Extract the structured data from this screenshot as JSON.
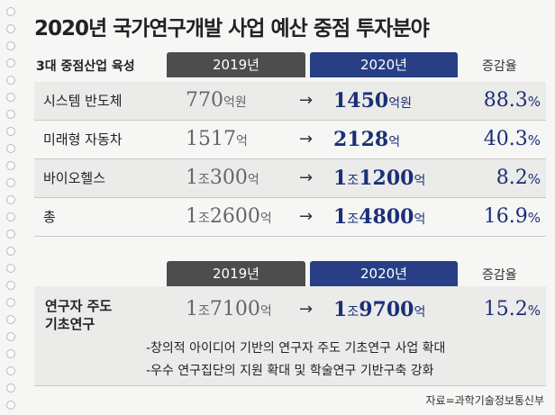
{
  "title": "2020년 국가연구개발 사업 예산 중점 투자분야",
  "section1": {
    "label": "3대 중점산업 육성",
    "col_2019": "2019년",
    "col_2020": "2020년",
    "col_rate": "증감율",
    "rows": [
      {
        "label": "시스템 반도체",
        "v2019_num": "770",
        "v2019_unit": "억원",
        "arrow": "→",
        "v2020_num": "1450",
        "v2020_unit": "억원",
        "rate_num": "88.3",
        "rate_unit": "%"
      },
      {
        "label": "미래형 자동차",
        "v2019_num": "1517",
        "v2019_unit": "억",
        "arrow": "→",
        "v2020_num": "2128",
        "v2020_unit": "억",
        "rate_num": "40.3",
        "rate_unit": "%"
      },
      {
        "label": "바이오헬스",
        "v2019_a": "1",
        "v2019_jo": "조",
        "v2019_num": "300",
        "v2019_unit": "억",
        "arrow": "→",
        "v2020_a": "1",
        "v2020_jo": "조",
        "v2020_num": "1200",
        "v2020_unit": "억",
        "rate_num": "8.2",
        "rate_unit": "%"
      },
      {
        "label": "총",
        "v2019_a": "1",
        "v2019_jo": "조",
        "v2019_num": "2600",
        "v2019_unit": "억",
        "arrow": "→",
        "v2020_a": "1",
        "v2020_jo": "조",
        "v2020_num": "4800",
        "v2020_unit": "억",
        "rate_num": "16.9",
        "rate_unit": "%"
      }
    ]
  },
  "section2": {
    "col_2019": "2019년",
    "col_2020": "2020년",
    "col_rate": "증감율",
    "label_line1": "연구자 주도",
    "label_line2": "기초연구",
    "v2019_a": "1",
    "v2019_jo": "조",
    "v2019_num": "7100",
    "v2019_unit": "억",
    "arrow": "→",
    "v2020_a": "1",
    "v2020_jo": "조",
    "v2020_num": "9700",
    "v2020_unit": "억",
    "rate_num": "15.2",
    "rate_unit": "%",
    "notes": [
      "-창의적 아이디어 기반의 연구자 주도 기초연구 사업 확대",
      "-우수 연구집단의 지원 확대 및 학술연구 기반구축 강화"
    ]
  },
  "source": "자료=과학기술정보통신부",
  "colors": {
    "accent_blue": "#283f86",
    "header_dark": "#4d4d4d",
    "value_blue": "#1b2f76"
  }
}
